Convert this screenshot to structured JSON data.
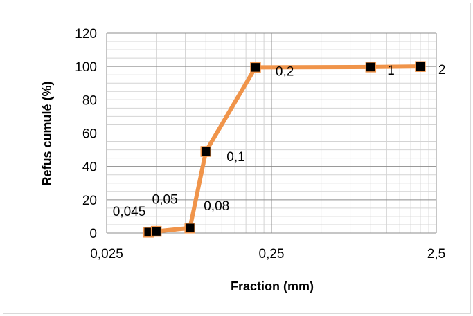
{
  "chart_data": {
    "type": "line",
    "x_scale": "log",
    "xlabel": "Fraction (mm)",
    "ylabel": "Refus cumulé (%)",
    "xlim": [
      0.025,
      2.5
    ],
    "ylim": [
      0,
      120
    ],
    "x_ticks": [
      "0,025",
      "0,25",
      "2,5"
    ],
    "y_ticks": [
      "0",
      "20",
      "40",
      "60",
      "80",
      "100",
      "120"
    ],
    "grid": true,
    "legend": "none",
    "line_color": "#f0944a",
    "marker_color": "#000000",
    "points": [
      {
        "x": 0.045,
        "y": 0.5,
        "label": "0,045"
      },
      {
        "x": 0.05,
        "y": 1,
        "label": "0,05"
      },
      {
        "x": 0.08,
        "y": 3,
        "label": "0,08"
      },
      {
        "x": 0.1,
        "y": 49,
        "label": "0,1"
      },
      {
        "x": 0.2,
        "y": 99.5,
        "label": "0,2"
      },
      {
        "x": 1,
        "y": 99.7,
        "label": "1"
      },
      {
        "x": 2,
        "y": 100,
        "label": "2"
      }
    ]
  }
}
